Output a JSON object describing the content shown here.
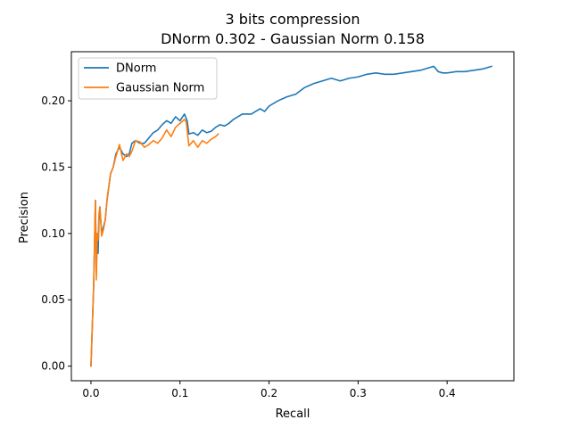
{
  "chart_data": {
    "type": "line",
    "title": [
      "3 bits compression",
      "DNorm 0.302 - Gaussian Norm 0.158"
    ],
    "xlabel": "Recall",
    "ylabel": "Precision",
    "xlim": [
      -0.022,
      0.475
    ],
    "ylim": [
      -0.011,
      0.237
    ],
    "xticks": [
      0.0,
      0.1,
      0.2,
      0.3,
      0.4
    ],
    "xtick_labels": [
      "0.0",
      "0.1",
      "0.2",
      "0.3",
      "0.4"
    ],
    "yticks": [
      0.0,
      0.05,
      0.1,
      0.15,
      0.2
    ],
    "ytick_labels": [
      "0.00",
      "0.05",
      "0.10",
      "0.15",
      "0.20"
    ],
    "grid": false,
    "legend": "top-left",
    "series": [
      {
        "name": "DNorm",
        "color": "#1f77b4",
        "x": [
          0.0,
          0.003,
          0.005,
          0.006,
          0.007,
          0.008,
          0.009,
          0.01,
          0.012,
          0.014,
          0.016,
          0.018,
          0.02,
          0.022,
          0.025,
          0.028,
          0.032,
          0.036,
          0.04,
          0.043,
          0.046,
          0.05,
          0.055,
          0.06,
          0.065,
          0.07,
          0.075,
          0.08,
          0.085,
          0.09,
          0.095,
          0.1,
          0.105,
          0.108,
          0.11,
          0.115,
          0.12,
          0.125,
          0.13,
          0.135,
          0.14,
          0.145,
          0.15,
          0.155,
          0.16,
          0.17,
          0.18,
          0.19,
          0.195,
          0.2,
          0.21,
          0.22,
          0.23,
          0.24,
          0.25,
          0.26,
          0.27,
          0.28,
          0.29,
          0.3,
          0.31,
          0.32,
          0.33,
          0.34,
          0.35,
          0.36,
          0.37,
          0.38,
          0.385,
          0.39,
          0.395,
          0.4,
          0.41,
          0.42,
          0.43,
          0.44,
          0.445,
          0.45
        ],
        "y": [
          0.0,
          0.06,
          0.125,
          0.07,
          0.1,
          0.085,
          0.11,
          0.12,
          0.1,
          0.105,
          0.11,
          0.125,
          0.135,
          0.145,
          0.15,
          0.16,
          0.165,
          0.16,
          0.158,
          0.16,
          0.168,
          0.17,
          0.168,
          0.168,
          0.172,
          0.176,
          0.178,
          0.182,
          0.185,
          0.183,
          0.188,
          0.185,
          0.19,
          0.185,
          0.175,
          0.176,
          0.174,
          0.178,
          0.176,
          0.177,
          0.18,
          0.182,
          0.181,
          0.183,
          0.186,
          0.19,
          0.19,
          0.194,
          0.192,
          0.196,
          0.2,
          0.203,
          0.205,
          0.21,
          0.213,
          0.215,
          0.217,
          0.215,
          0.217,
          0.218,
          0.22,
          0.221,
          0.22,
          0.22,
          0.221,
          0.222,
          0.223,
          0.225,
          0.226,
          0.222,
          0.221,
          0.221,
          0.222,
          0.222,
          0.223,
          0.224,
          0.225,
          0.226
        ]
      },
      {
        "name": "Gaussian Norm",
        "color": "#ff7f0e",
        "x": [
          0.0,
          0.003,
          0.005,
          0.006,
          0.007,
          0.008,
          0.009,
          0.01,
          0.012,
          0.014,
          0.016,
          0.018,
          0.02,
          0.022,
          0.025,
          0.028,
          0.032,
          0.036,
          0.04,
          0.043,
          0.046,
          0.05,
          0.055,
          0.06,
          0.065,
          0.07,
          0.075,
          0.08,
          0.085,
          0.09,
          0.095,
          0.1,
          0.105,
          0.107,
          0.11,
          0.115,
          0.12,
          0.125,
          0.13,
          0.135,
          0.14,
          0.143
        ],
        "y": [
          0.0,
          0.06,
          0.125,
          0.065,
          0.1,
          0.095,
          0.115,
          0.12,
          0.098,
          0.103,
          0.11,
          0.125,
          0.135,
          0.145,
          0.15,
          0.158,
          0.167,
          0.155,
          0.16,
          0.158,
          0.162,
          0.17,
          0.169,
          0.165,
          0.167,
          0.17,
          0.168,
          0.172,
          0.178,
          0.173,
          0.18,
          0.183,
          0.186,
          0.184,
          0.166,
          0.17,
          0.165,
          0.17,
          0.168,
          0.171,
          0.173,
          0.175
        ]
      }
    ]
  }
}
